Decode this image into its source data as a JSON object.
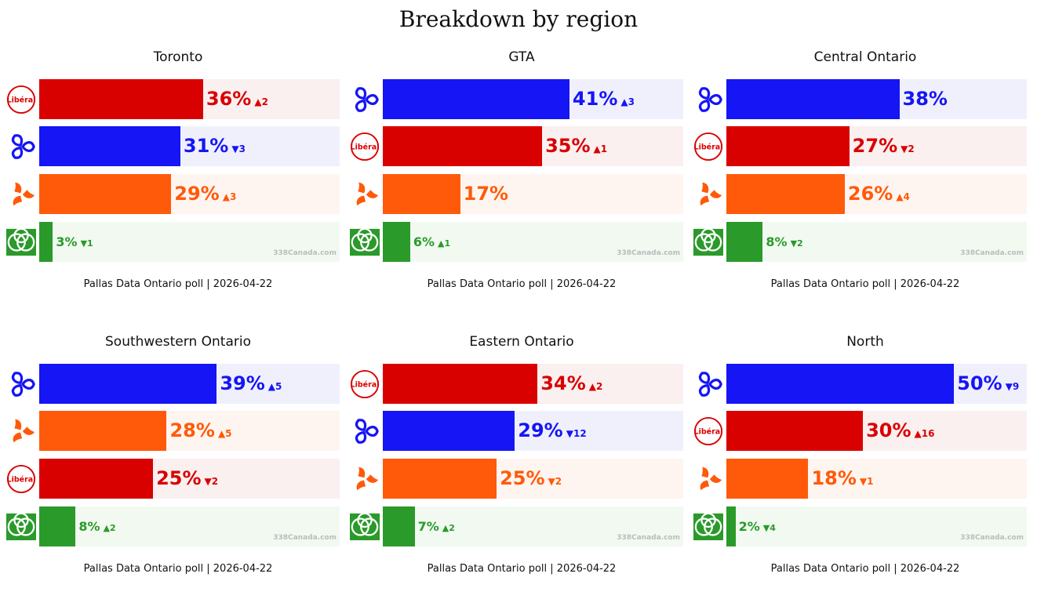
{
  "title": "Breakdown by region",
  "parties": {
    "LIB": {
      "name": "Liberal",
      "logo_text": "Libéral",
      "color": "#d90000",
      "bg": "#faf0f0"
    },
    "PC": {
      "name": "PC",
      "color": "#1515f5",
      "bg": "#f0f0fd"
    },
    "NDP": {
      "name": "NDP",
      "color": "#ff5a0a",
      "bg": "#fff5f0"
    },
    "GRN": {
      "name": "Green",
      "color": "#2a9a2a",
      "bg": "#f1f9f1"
    }
  },
  "chart_data": [
    {
      "type": "bar",
      "title": "Toronto",
      "footer": "Pallas Data Ontario poll | 2026-04-22",
      "watermark": "338Canada.com",
      "xlim": [
        0,
        66
      ],
      "bars": [
        {
          "party": "LIB",
          "value": 36,
          "label": "36%",
          "change": "▲2"
        },
        {
          "party": "PC",
          "value": 31,
          "label": "31%",
          "change": "▼3"
        },
        {
          "party": "NDP",
          "value": 29,
          "label": "29%",
          "change": "▲3"
        },
        {
          "party": "GRN",
          "value": 3,
          "label": "3%",
          "change": "▼1"
        }
      ]
    },
    {
      "type": "bar",
      "title": "GTA",
      "footer": "Pallas Data Ontario poll | 2026-04-22",
      "watermark": "338Canada.com",
      "xlim": [
        0,
        66
      ],
      "bars": [
        {
          "party": "PC",
          "value": 41,
          "label": "41%",
          "change": "▲3"
        },
        {
          "party": "LIB",
          "value": 35,
          "label": "35%",
          "change": "▲1"
        },
        {
          "party": "NDP",
          "value": 17,
          "label": "17%",
          "change": ""
        },
        {
          "party": "GRN",
          "value": 6,
          "label": "6%",
          "change": "▲1"
        }
      ]
    },
    {
      "type": "bar",
      "title": "Central Ontario",
      "footer": "Pallas Data Ontario poll | 2026-04-22",
      "watermark": "338Canada.com",
      "xlim": [
        0,
        66
      ],
      "bars": [
        {
          "party": "PC",
          "value": 38,
          "label": "38%",
          "change": ""
        },
        {
          "party": "LIB",
          "value": 27,
          "label": "27%",
          "change": "▼2"
        },
        {
          "party": "NDP",
          "value": 26,
          "label": "26%",
          "change": "▲4"
        },
        {
          "party": "GRN",
          "value": 8,
          "label": "8%",
          "change": "▼2"
        }
      ]
    },
    {
      "type": "bar",
      "title": "Southwestern Ontario",
      "footer": "Pallas Data Ontario poll | 2026-04-22",
      "watermark": "338Canada.com",
      "xlim": [
        0,
        66
      ],
      "bars": [
        {
          "party": "PC",
          "value": 39,
          "label": "39%",
          "change": "▲5"
        },
        {
          "party": "NDP",
          "value": 28,
          "label": "28%",
          "change": "▲5"
        },
        {
          "party": "LIB",
          "value": 25,
          "label": "25%",
          "change": "▼2"
        },
        {
          "party": "GRN",
          "value": 8,
          "label": "8%",
          "change": "▲2"
        }
      ]
    },
    {
      "type": "bar",
      "title": "Eastern Ontario",
      "footer": "Pallas Data Ontario poll | 2026-04-22",
      "watermark": "338Canada.com",
      "xlim": [
        0,
        66
      ],
      "bars": [
        {
          "party": "LIB",
          "value": 34,
          "label": "34%",
          "change": "▲2"
        },
        {
          "party": "PC",
          "value": 29,
          "label": "29%",
          "change": "▼12"
        },
        {
          "party": "NDP",
          "value": 25,
          "label": "25%",
          "change": "▼2"
        },
        {
          "party": "GRN",
          "value": 7,
          "label": "7%",
          "change": "▲2"
        }
      ]
    },
    {
      "type": "bar",
      "title": "North",
      "footer": "Pallas Data Ontario poll | 2026-04-22",
      "watermark": "338Canada.com",
      "xlim": [
        0,
        66
      ],
      "bars": [
        {
          "party": "PC",
          "value": 50,
          "label": "50%",
          "change": "▼9"
        },
        {
          "party": "LIB",
          "value": 30,
          "label": "30%",
          "change": "▲16"
        },
        {
          "party": "NDP",
          "value": 18,
          "label": "18%",
          "change": "▼1"
        },
        {
          "party": "GRN",
          "value": 2,
          "label": "2%",
          "change": "▼4"
        }
      ]
    }
  ]
}
